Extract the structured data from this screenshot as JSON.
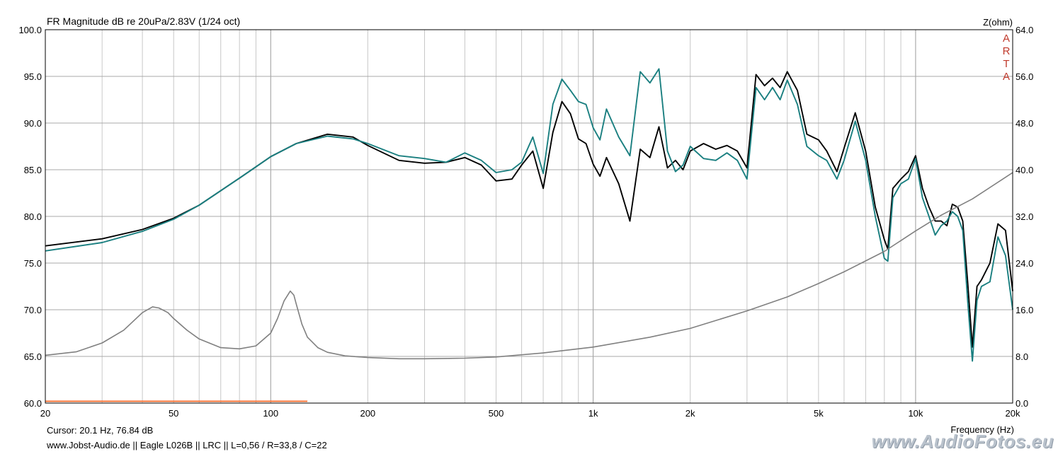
{
  "chart_data": {
    "type": "line",
    "title": "FR Magnitude dB re 20uPa/2.83V (1/24 oct)",
    "y2_label": "Z(ohm)",
    "xlabel": "Frequency (Hz)",
    "x_scale": "log",
    "xlim": [
      20,
      20000
    ],
    "ylim": [
      60,
      100
    ],
    "y2lim": [
      0,
      64
    ],
    "grid": true,
    "x_ticks": [
      {
        "value": 20,
        "label": "20"
      },
      {
        "value": 50,
        "label": "50"
      },
      {
        "value": 100,
        "label": "100"
      },
      {
        "value": 200,
        "label": "200"
      },
      {
        "value": 500,
        "label": "500"
      },
      {
        "value": 1000,
        "label": "1k"
      },
      {
        "value": 2000,
        "label": "2k"
      },
      {
        "value": 5000,
        "label": "5k"
      },
      {
        "value": 10000,
        "label": "10k"
      },
      {
        "value": 20000,
        "label": "20k"
      }
    ],
    "y_ticks": [
      {
        "value": 100,
        "label": "100.0"
      },
      {
        "value": 95,
        "label": "95.0"
      },
      {
        "value": 90,
        "label": "90.0"
      },
      {
        "value": 85,
        "label": "85.0"
      },
      {
        "value": 80,
        "label": "80.0"
      },
      {
        "value": 75,
        "label": "75.0"
      },
      {
        "value": 70,
        "label": "70.0"
      },
      {
        "value": 65,
        "label": "65.0"
      },
      {
        "value": 60,
        "label": "60.0"
      }
    ],
    "y2_ticks": [
      {
        "value": 64,
        "label": "64.0"
      },
      {
        "value": 56,
        "label": "56.0"
      },
      {
        "value": 48,
        "label": "48.0"
      },
      {
        "value": 40,
        "label": "40.0"
      },
      {
        "value": 32,
        "label": "32.0"
      },
      {
        "value": 24,
        "label": "24.0"
      },
      {
        "value": 16,
        "label": "16.0"
      },
      {
        "value": 8,
        "label": "8.0"
      },
      {
        "value": 0,
        "label": "0.0"
      }
    ],
    "series": [
      {
        "color": "#000000",
        "axis": "y",
        "x": [
          20,
          30,
          40,
          50,
          60,
          80,
          100,
          120,
          150,
          180,
          200,
          250,
          300,
          350,
          400,
          450,
          500,
          560,
          600,
          650,
          700,
          750,
          800,
          850,
          900,
          950,
          1000,
          1050,
          1100,
          1200,
          1300,
          1400,
          1500,
          1600,
          1700,
          1800,
          1900,
          2000,
          2200,
          2400,
          2600,
          2800,
          3000,
          3200,
          3400,
          3600,
          3800,
          4000,
          4300,
          4600,
          5000,
          5300,
          5700,
          6000,
          6500,
          7000,
          7500,
          8000,
          8200,
          8500,
          9000,
          9500,
          10000,
          10500,
          11000,
          11500,
          12000,
          12500,
          13000,
          13500,
          14000,
          14500,
          15000,
          15500,
          16000,
          17000,
          18000,
          19000,
          20000
        ],
        "y": [
          76.84,
          77.6,
          78.6,
          79.8,
          81.2,
          84.1,
          86.4,
          87.8,
          88.8,
          88.5,
          87.6,
          86.0,
          85.7,
          85.8,
          86.3,
          85.5,
          83.8,
          84.0,
          85.5,
          87.0,
          83.0,
          89.0,
          92.3,
          91.0,
          88.3,
          87.8,
          85.6,
          84.3,
          86.3,
          83.5,
          79.5,
          87.2,
          86.3,
          89.6,
          85.2,
          86.0,
          85.0,
          87.0,
          87.8,
          87.2,
          87.6,
          87.0,
          85.2,
          95.2,
          94.0,
          94.8,
          93.8,
          95.5,
          93.5,
          88.8,
          88.2,
          87.0,
          84.8,
          87.3,
          91.1,
          87.0,
          81.0,
          77.5,
          76.5,
          83.0,
          84.0,
          84.8,
          86.5,
          83.0,
          81.0,
          79.5,
          79.5,
          79.0,
          81.3,
          81.0,
          79.5,
          73.0,
          66.0,
          72.5,
          73.2,
          75.0,
          79.2,
          78.5,
          72.0
        ]
      },
      {
        "color": "#1a7f80",
        "axis": "y",
        "x": [
          20,
          30,
          40,
          50,
          60,
          80,
          100,
          120,
          150,
          180,
          200,
          250,
          300,
          350,
          400,
          450,
          500,
          560,
          600,
          650,
          700,
          750,
          800,
          850,
          900,
          950,
          1000,
          1050,
          1100,
          1200,
          1300,
          1400,
          1500,
          1600,
          1700,
          1800,
          1900,
          2000,
          2200,
          2400,
          2600,
          2800,
          3000,
          3200,
          3400,
          3600,
          3800,
          4000,
          4300,
          4600,
          5000,
          5300,
          5700,
          6000,
          6500,
          7000,
          7500,
          8000,
          8200,
          8500,
          9000,
          9500,
          10000,
          10500,
          11000,
          11500,
          12000,
          12500,
          13000,
          13500,
          14000,
          14500,
          15000,
          15500,
          16000,
          17000,
          18000,
          19000,
          20000
        ],
        "y": [
          76.3,
          77.2,
          78.4,
          79.7,
          81.2,
          84.1,
          86.4,
          87.8,
          88.6,
          88.3,
          87.8,
          86.5,
          86.2,
          85.8,
          86.8,
          86.0,
          84.7,
          85.0,
          85.8,
          88.5,
          84.6,
          92.0,
          94.7,
          93.5,
          92.3,
          92.0,
          89.5,
          88.2,
          91.5,
          88.5,
          86.5,
          95.5,
          94.3,
          95.8,
          87.0,
          84.8,
          85.5,
          87.5,
          86.2,
          86.0,
          86.8,
          86.0,
          84.0,
          93.8,
          92.5,
          93.8,
          92.5,
          94.6,
          92.0,
          87.5,
          86.5,
          86.0,
          84.0,
          86.0,
          90.2,
          86.0,
          80.0,
          75.5,
          75.2,
          82.0,
          83.5,
          84.0,
          86.2,
          82.0,
          80.0,
          78.0,
          79.0,
          79.5,
          80.5,
          80.0,
          78.5,
          71.0,
          64.5,
          71.0,
          72.5,
          73.0,
          77.8,
          75.8,
          70.0
        ]
      },
      {
        "color": "#808080",
        "axis": "y2",
        "x": [
          20,
          25,
          30,
          35,
          40,
          43,
          45,
          48,
          50,
          55,
          60,
          70,
          80,
          90,
          100,
          105,
          110,
          115,
          118,
          120,
          125,
          130,
          140,
          150,
          170,
          200,
          250,
          300,
          400,
          500,
          700,
          1000,
          1500,
          2000,
          3000,
          4000,
          5000,
          6000,
          8000,
          10000,
          12000,
          15000,
          20000
        ],
        "y": [
          8.2,
          8.8,
          10.3,
          12.5,
          15.5,
          16.5,
          16.3,
          15.5,
          14.5,
          12.5,
          11.0,
          9.5,
          9.3,
          9.8,
          12.0,
          14.5,
          17.5,
          19.2,
          18.5,
          17.0,
          13.5,
          11.3,
          9.5,
          8.7,
          8.1,
          7.8,
          7.6,
          7.6,
          7.7,
          7.9,
          8.6,
          9.6,
          11.3,
          12.8,
          15.8,
          18.2,
          20.5,
          22.5,
          26.0,
          29.5,
          32.2,
          35.0,
          39.5
        ]
      },
      {
        "color": "#ff6a2a",
        "axis": "y",
        "x": [
          20,
          130
        ],
        "y": [
          60.2,
          60.2
        ]
      }
    ],
    "annotations": [
      "A",
      "R",
      "T",
      "A"
    ]
  },
  "footer": {
    "cursor": "Cursor: 20.1 Hz, 76.84 dB",
    "info": "www.Jobst-Audio.de  ||  Eagle L026B  ||  LRC  ||   L=0,56 / R=33,8 / C=22",
    "watermark": "www.AudioFotos.eu"
  }
}
